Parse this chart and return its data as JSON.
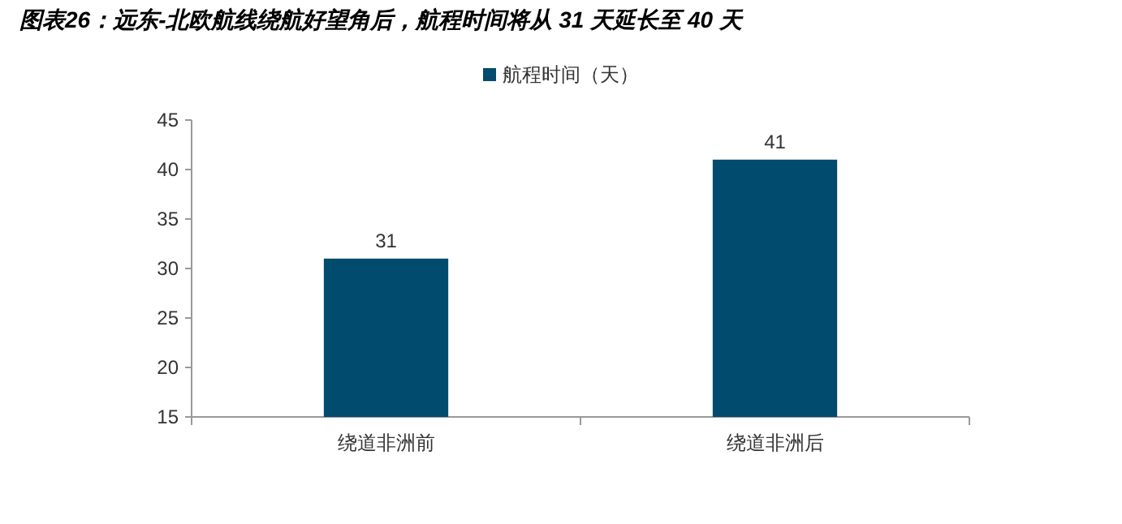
{
  "chart_data": {
    "type": "bar",
    "title": "图表26：远东-北欧航线绕航好望角后，航程时间将从 31 天延长至 40 天",
    "categories": [
      "绕道非洲前",
      "绕道非洲后"
    ],
    "series": [
      {
        "name": "航程时间（天）",
        "color": "#004b6e",
        "values": [
          31,
          41
        ]
      }
    ],
    "ylim": [
      15,
      45
    ],
    "yticks": [
      15,
      20,
      25,
      30,
      35,
      40,
      45
    ],
    "data_labels": true,
    "legend": "top",
    "grid": false
  }
}
